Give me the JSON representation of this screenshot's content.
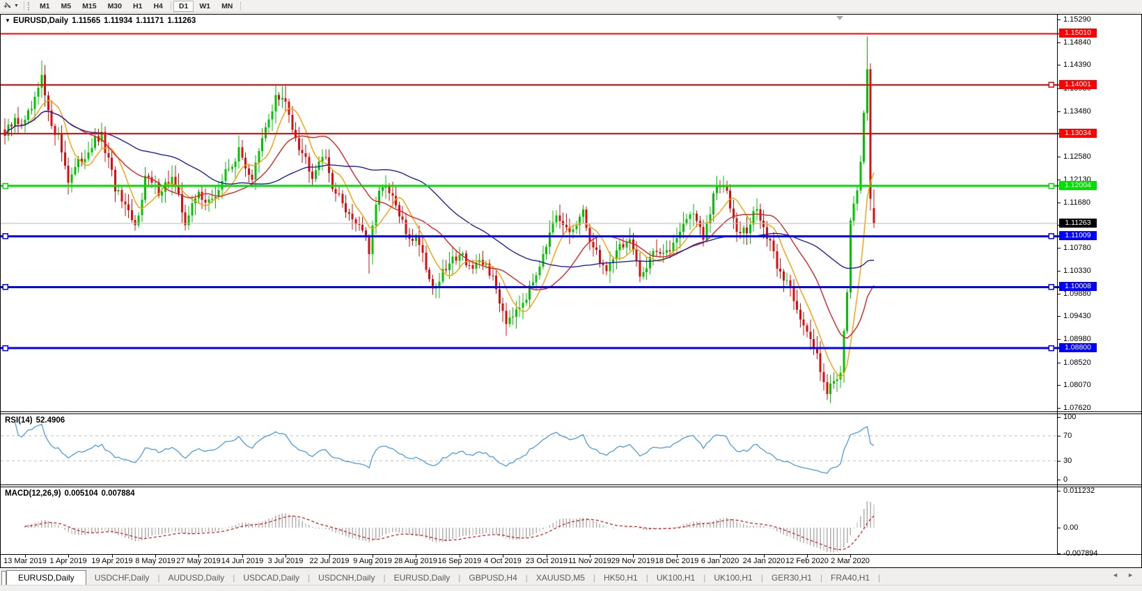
{
  "toolbar": {
    "timeframe_buttons": [
      "M1",
      "M5",
      "M15",
      "M30",
      "H1",
      "H4",
      "D1",
      "W1",
      "MN"
    ],
    "selected_timeframe": "D1",
    "group_break_before": "D1"
  },
  "chart": {
    "collapse_caret": "▼",
    "symbol_period": "EURUSD,Daily",
    "ohlc": {
      "open": "1.11565",
      "high": "1.11934",
      "low": "1.11171",
      "close": "1.11263"
    },
    "price_axis_ticks": [
      "1.15290",
      "1.14840",
      "1.14390",
      "1.13930",
      "1.13480",
      "1.13030",
      "1.12580",
      "1.12130",
      "1.11680",
      "1.11230",
      "1.10780",
      "1.10330",
      "1.09880",
      "1.09430",
      "1.08980",
      "1.08520",
      "1.08070",
      "1.07620"
    ],
    "current_price_label": "1.11263",
    "date_labels": [
      "13 Mar 2019",
      "1 Apr 2019",
      "19 Apr 2019",
      "8 May 2019",
      "27 May 2019",
      "14 Jun 2019",
      "3 Jul 2019",
      "22 Jul 2019",
      "9 Aug 2019",
      "28 Aug 2019",
      "16 Sep 2019",
      "4 Oct 2019",
      "23 Oct 2019",
      "11 Nov 2019",
      "29 Nov 2019",
      "18 Dec 2019",
      "6 Jan 2020",
      "24 Jan 2020",
      "12 Feb 2020",
      "2 Mar 2020"
    ]
  },
  "rsi_panel": {
    "name": "RSI(14)",
    "value": "52.4906",
    "axis_labels": [
      "100",
      "70",
      "30",
      "0"
    ],
    "level_lines": [
      70,
      30
    ]
  },
  "macd_panel": {
    "name": "MACD(12,26,9)",
    "main_value": "0.005104",
    "signal_value": "0.007884",
    "axis_labels": [
      "0.011232",
      "0.00",
      "-0.007894"
    ]
  },
  "tabs": {
    "items": [
      {
        "label": "EURUSD,Daily",
        "active": true
      },
      {
        "label": "USDCHF,Daily"
      },
      {
        "label": "AUDUSD,Daily"
      },
      {
        "label": "USDCAD,Daily"
      },
      {
        "label": "USDCNH,Daily"
      },
      {
        "label": "EURUSD,Daily"
      },
      {
        "label": "GBPUSD,H4"
      },
      {
        "label": "XAUUSD,M5"
      },
      {
        "label": "HK50,H1"
      },
      {
        "label": "UK100,H1"
      },
      {
        "label": "UK100,H1"
      },
      {
        "label": "GER30,H1"
      },
      {
        "label": "FRA40,H1"
      }
    ],
    "nav_left": "◄",
    "nav_right": "►"
  },
  "chart_data": {
    "type": "candlestick",
    "symbol": "EURUSD",
    "timeframe": "Daily",
    "price_range_visible": [
      1.0762,
      1.1529
    ],
    "last_bar_ohlc": {
      "open": 1.11565,
      "high": 1.11934,
      "low": 1.11171,
      "close": 1.11263
    },
    "bars_total": 261,
    "first_date_tick_bar": 6,
    "bars_per_date_tick": 13,
    "bull_color": "#00C400",
    "bear_color": "#DE0D0D",
    "close_anchors": [
      [
        0,
        1.13
      ],
      [
        3,
        1.1328
      ],
      [
        6,
        1.1324
      ],
      [
        9,
        1.1365
      ],
      [
        11,
        1.1412
      ],
      [
        13,
        1.134
      ],
      [
        16,
        1.1298
      ],
      [
        19,
        1.1215
      ],
      [
        22,
        1.1242
      ],
      [
        26,
        1.1282
      ],
      [
        29,
        1.1296
      ],
      [
        33,
        1.1198
      ],
      [
        36,
        1.1152
      ],
      [
        39,
        1.1118
      ],
      [
        42,
        1.1218
      ],
      [
        46,
        1.1192
      ],
      [
        50,
        1.1216
      ],
      [
        54,
        1.1132
      ],
      [
        58,
        1.1186
      ],
      [
        62,
        1.1166
      ],
      [
        66,
        1.1226
      ],
      [
        70,
        1.1266
      ],
      [
        74,
        1.1216
      ],
      [
        78,
        1.1312
      ],
      [
        81,
        1.1376
      ],
      [
        84,
        1.1362
      ],
      [
        88,
        1.1282
      ],
      [
        92,
        1.1226
      ],
      [
        95,
        1.1266
      ],
      [
        99,
        1.1186
      ],
      [
        103,
        1.1146
      ],
      [
        107,
        1.1116
      ],
      [
        109,
        1.1066
      ],
      [
        112,
        1.1202
      ],
      [
        116,
        1.1176
      ],
      [
        120,
        1.1106
      ],
      [
        124,
        1.1092
      ],
      [
        128,
        1.0996
      ],
      [
        132,
        1.1036
      ],
      [
        136,
        1.1072
      ],
      [
        140,
        1.1036
      ],
      [
        144,
        1.1048
      ],
      [
        147,
        1.0996
      ],
      [
        150,
        1.0936
      ],
      [
        153,
        1.0962
      ],
      [
        157,
        1.0992
      ],
      [
        161,
        1.1072
      ],
      [
        165,
        1.1132
      ],
      [
        169,
        1.1108
      ],
      [
        173,
        1.1142
      ],
      [
        176,
        1.1078
      ],
      [
        180,
        1.1032
      ],
      [
        183,
        1.1078
      ],
      [
        187,
        1.1092
      ],
      [
        190,
        1.1018
      ],
      [
        194,
        1.1078
      ],
      [
        198,
        1.1062
      ],
      [
        202,
        1.1118
      ],
      [
        206,
        1.1152
      ],
      [
        209,
        1.1092
      ],
      [
        213,
        1.1202
      ],
      [
        216,
        1.1188
      ],
      [
        219,
        1.1122
      ],
      [
        222,
        1.1108
      ],
      [
        225,
        1.1158
      ],
      [
        228,
        1.1098
      ],
      [
        232,
        1.1028
      ],
      [
        235,
        1.1002
      ],
      [
        240,
        1.0905
      ],
      [
        243,
        1.0868
      ],
      [
        246,
        1.0798
      ],
      [
        248,
        1.0812
      ],
      [
        250,
        1.0838
      ],
      [
        252,
        1.1
      ],
      [
        253,
        1.113
      ],
      [
        255,
        1.118
      ],
      [
        256,
        1.1255
      ],
      [
        257,
        1.1342
      ],
      [
        258,
        1.1438
      ],
      [
        259,
        1.118
      ],
      [
        260,
        1.11263
      ]
    ],
    "wick_highs": [
      [
        11,
        1.1448
      ],
      [
        258,
        1.1495
      ]
    ],
    "wick_lows": [
      [
        109,
        1.1027
      ],
      [
        150,
        1.0904
      ],
      [
        246,
        1.0778
      ]
    ],
    "moving_averages": [
      {
        "period": 8,
        "color": "#FF9C00"
      },
      {
        "period": 20,
        "color": "#E02020"
      },
      {
        "period": 50,
        "color": "#2020A8"
      }
    ],
    "horizontal_levels": [
      {
        "price": 1.1501,
        "label": "1.15010",
        "color": "#FF0000",
        "width": 2,
        "handle_left": false,
        "handle_right": false
      },
      {
        "price": 1.14001,
        "label": "1.14001",
        "color": "#FF0000",
        "width": 2,
        "handle_left": false,
        "handle_right": true
      },
      {
        "price": 1.13034,
        "label": "1.13034",
        "color": "#FF0000",
        "width": 2,
        "handle_left": false,
        "handle_right": false
      },
      {
        "price": 1.12004,
        "label": "1.12004",
        "color": "#00DF00",
        "width": 3,
        "handle_left": true,
        "handle_right": true
      },
      {
        "price": 1.11009,
        "label": "1.11009",
        "color": "#0000FF",
        "width": 3,
        "handle_left": true,
        "handle_right": true
      },
      {
        "price": 1.10008,
        "label": "1.10008",
        "color": "#0000FF",
        "width": 3,
        "handle_left": true,
        "handle_right": true
      },
      {
        "price": 1.088,
        "label": "1.08800",
        "color": "#0000FF",
        "width": 3,
        "handle_left": true,
        "handle_right": true
      }
    ],
    "current_price": {
      "value": 1.11263,
      "line_color": "#B8B8B8",
      "label_bg": "#000000"
    },
    "rsi": {
      "period": 14,
      "line_color": "#4D9BE8",
      "levels": [
        70,
        30
      ],
      "range": [
        0,
        100
      ],
      "current": 52.4906
    },
    "macd": {
      "fast": 12,
      "slow": 26,
      "signal": 9,
      "hist_color": "#B0B0B0",
      "signal_color": "#E02020",
      "axis_top": 0.011232,
      "axis_zero": 0.0,
      "axis_bottom": -0.007894,
      "current_main": 0.005104,
      "current_signal": 0.007884
    }
  }
}
